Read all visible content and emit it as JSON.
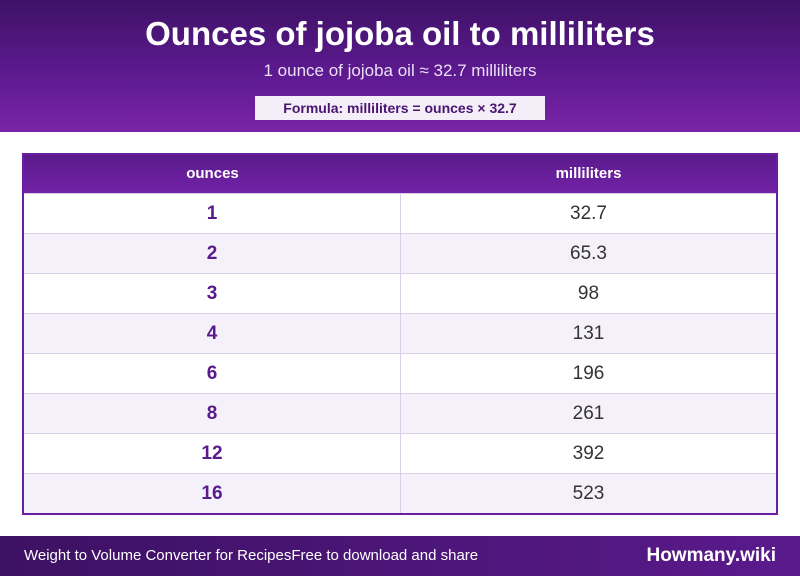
{
  "header": {
    "title": "Ounces of jojoba oil to milliliters",
    "subtitle": "1 ounce of jojoba oil ≈ 32.7 milliliters",
    "formula": "Formula: milliliters = ounces × 32.7"
  },
  "table": {
    "headers": [
      "ounces",
      "milliliters"
    ],
    "rows": [
      {
        "ounces": "1",
        "milliliters": "32.7"
      },
      {
        "ounces": "2",
        "milliliters": "65.3"
      },
      {
        "ounces": "3",
        "milliliters": "98"
      },
      {
        "ounces": "4",
        "milliliters": "131"
      },
      {
        "ounces": "6",
        "milliliters": "196"
      },
      {
        "ounces": "8",
        "milliliters": "261"
      },
      {
        "ounces": "12",
        "milliliters": "392"
      },
      {
        "ounces": "16",
        "milliliters": "523"
      }
    ]
  },
  "footer": {
    "left_text": "Weight to Volume Converter for RecipesFree to download and share",
    "brand": "Howmany.wiki"
  },
  "colors": {
    "primary": "#5a1a8c",
    "header_dark": "#3f1266",
    "row_alt": "#f5f1fa"
  }
}
